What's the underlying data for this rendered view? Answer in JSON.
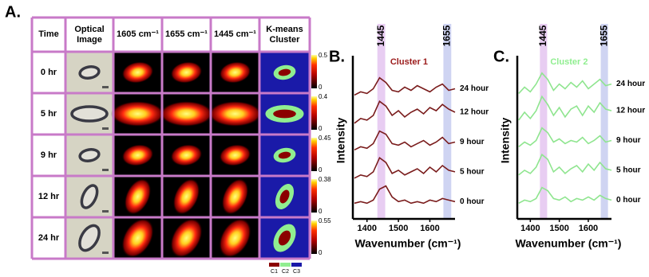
{
  "panel_a": {
    "label": "A.",
    "headers": [
      "Time",
      "Optical Image",
      "1605 cm⁻¹",
      "1655 cm⁻¹",
      "1445 cm⁻¹",
      "K-means Cluster"
    ],
    "rows": [
      {
        "time": "0 hr",
        "colorbar_max": 0.5,
        "colorbar_min": 0
      },
      {
        "time": "5 hr",
        "colorbar_max": 0.4,
        "colorbar_min": 0
      },
      {
        "time": "9 hr",
        "colorbar_max": 0.45,
        "colorbar_min": 0
      },
      {
        "time": "12 hr",
        "colorbar_max": 0.38,
        "colorbar_min": 0
      },
      {
        "time": "24 hr",
        "colorbar_max": 0.55,
        "colorbar_min": 0
      }
    ],
    "cluster_legend": [
      {
        "name": "C1",
        "color": "#8b0000"
      },
      {
        "name": "C2",
        "color": "#90ee90"
      },
      {
        "name": "C3",
        "color": "#1a1aa8"
      }
    ]
  },
  "chart_data": [
    {
      "type": "line",
      "panel_label": "B.",
      "title": "Cluster 1",
      "title_color": "#9b1b1b",
      "x_label": "Wavenumber (cm⁻¹)",
      "y_label": "Intensity",
      "xlim": [
        1355,
        1680
      ],
      "xticks": [
        1400,
        1500,
        1600
      ],
      "ylim": [
        0,
        10
      ],
      "bands": [
        {
          "label": "1445",
          "range": [
            1433,
            1458
          ],
          "color": "#e8cdf2"
        },
        {
          "label": "1655",
          "range": [
            1643,
            1668
          ],
          "color": "#cfd4f2"
        }
      ],
      "x": [
        1360,
        1380,
        1400,
        1420,
        1440,
        1460,
        1480,
        1500,
        1520,
        1540,
        1560,
        1580,
        1600,
        1620,
        1640,
        1660,
        1680
      ],
      "series": [
        {
          "name": "0 hour",
          "color": "#7a1c1c",
          "values": [
            1.0,
            1.1,
            1.0,
            1.2,
            1.9,
            2.1,
            1.4,
            1.1,
            1.2,
            1.0,
            1.1,
            1.0,
            1.2,
            1.1,
            1.3,
            1.2,
            1.1
          ]
        },
        {
          "name": "5 hour",
          "color": "#7a1c1c",
          "values": [
            2.6,
            2.8,
            2.7,
            3.0,
            3.9,
            3.6,
            2.9,
            3.1,
            2.8,
            3.0,
            3.2,
            2.9,
            3.3,
            3.0,
            3.4,
            3.1,
            3.0
          ]
        },
        {
          "name": "9 hour",
          "color": "#7a1c1c",
          "values": [
            4.4,
            4.6,
            4.5,
            4.8,
            5.6,
            5.4,
            4.8,
            4.7,
            4.9,
            4.6,
            4.8,
            5.0,
            4.7,
            4.9,
            5.2,
            4.8,
            4.9
          ]
        },
        {
          "name": "12 hour",
          "color": "#7a1c1c",
          "values": [
            6.1,
            6.4,
            6.3,
            6.6,
            7.5,
            7.2,
            6.6,
            6.9,
            6.5,
            6.8,
            7.0,
            6.7,
            7.1,
            6.9,
            7.3,
            7.0,
            6.8
          ]
        },
        {
          "name": "24 hour",
          "color": "#7a1c1c",
          "values": [
            7.9,
            8.1,
            8.0,
            8.3,
            9.0,
            8.7,
            8.2,
            8.1,
            8.4,
            8.2,
            8.5,
            8.3,
            8.1,
            8.4,
            8.6,
            8.2,
            8.3
          ]
        }
      ]
    },
    {
      "type": "line",
      "panel_label": "C.",
      "title": "Cluster 2",
      "title_color": "#90ee90",
      "x_label": "Wavenumber (cm⁻¹)",
      "y_label": "Intensity",
      "xlim": [
        1355,
        1680
      ],
      "xticks": [
        1400,
        1500,
        1600
      ],
      "ylim": [
        0,
        10
      ],
      "bands": [
        {
          "label": "1445",
          "range": [
            1433,
            1458
          ],
          "color": "#e8cdf2"
        },
        {
          "label": "1655",
          "range": [
            1643,
            1668
          ],
          "color": "#cfd4f2"
        }
      ],
      "x": [
        1360,
        1380,
        1400,
        1420,
        1440,
        1460,
        1480,
        1500,
        1520,
        1540,
        1560,
        1580,
        1600,
        1620,
        1640,
        1660,
        1680
      ],
      "series": [
        {
          "name": "0 hour",
          "color": "#8fe58f",
          "values": [
            1.0,
            1.2,
            1.1,
            1.3,
            2.0,
            1.8,
            1.3,
            1.2,
            1.4,
            1.1,
            1.3,
            1.2,
            1.4,
            1.2,
            1.5,
            1.3,
            1.2
          ]
        },
        {
          "name": "5 hour",
          "color": "#8fe58f",
          "values": [
            2.8,
            3.1,
            2.9,
            3.3,
            4.1,
            3.8,
            3.0,
            3.3,
            2.9,
            3.2,
            3.4,
            3.0,
            3.5,
            3.1,
            3.6,
            3.2,
            3.1
          ]
        },
        {
          "name": "9 hour",
          "color": "#8fe58f",
          "values": [
            4.6,
            4.9,
            4.7,
            5.0,
            5.8,
            5.5,
            4.9,
            5.1,
            4.8,
            5.0,
            4.9,
            5.2,
            4.8,
            5.0,
            5.3,
            4.9,
            5.0
          ]
        },
        {
          "name": "12 hour",
          "color": "#8fe58f",
          "values": [
            6.3,
            6.8,
            6.4,
            6.9,
            7.8,
            7.3,
            6.6,
            7.1,
            6.5,
            7.0,
            7.2,
            6.6,
            7.2,
            6.8,
            7.4,
            7.0,
            6.9
          ]
        },
        {
          "name": "24 hour",
          "color": "#8fe58f",
          "values": [
            8.0,
            8.4,
            8.1,
            8.6,
            9.3,
            8.9,
            8.2,
            8.6,
            8.3,
            8.7,
            8.4,
            8.8,
            8.3,
            8.6,
            8.9,
            8.5,
            8.6
          ]
        }
      ]
    }
  ]
}
